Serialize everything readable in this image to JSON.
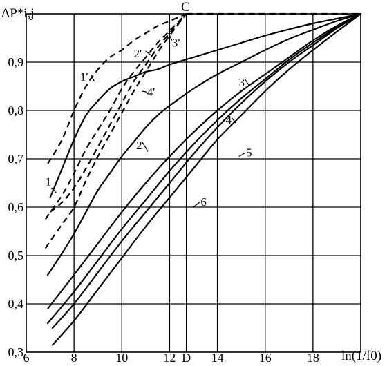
{
  "chart_data": {
    "type": "line",
    "title": "",
    "ylabel": "ΔP*i,j",
    "xlabel": "ln(1/f0)",
    "xlim": [
      6,
      20
    ],
    "ylim": [
      0.3,
      1.0
    ],
    "grid": true,
    "x_ticks": [
      {
        "value": 6,
        "label": "6"
      },
      {
        "value": 8,
        "label": "8"
      },
      {
        "value": 10,
        "label": "10"
      },
      {
        "value": 12,
        "label": "12"
      },
      {
        "value": 12.7,
        "label": "D"
      },
      {
        "value": 14,
        "label": "14"
      },
      {
        "value": 16,
        "label": "16"
      },
      {
        "value": 18,
        "label": "18"
      }
    ],
    "y_ticks": [
      {
        "value": 0.3,
        "label": "0,3"
      },
      {
        "value": 0.4,
        "label": "0,4"
      },
      {
        "value": 0.5,
        "label": "0,5"
      },
      {
        "value": 0.6,
        "label": "0,6"
      },
      {
        "value": 0.7,
        "label": "0,7"
      },
      {
        "value": 0.8,
        "label": "0,8"
      },
      {
        "value": 0.9,
        "label": "0,9"
      }
    ],
    "point_C": {
      "label": "C",
      "x": 12.7,
      "y": 1.0
    },
    "c_line": {
      "style": "dashed",
      "points": [
        [
          12.7,
          1.0
        ],
        [
          20,
          1.0
        ]
      ]
    },
    "series": [
      {
        "name": "1",
        "style": "solid",
        "label_at": [
          6.8,
          0.645
        ],
        "points": [
          [
            7.0,
            0.62
          ],
          [
            7.5,
            0.68
          ],
          [
            8,
            0.74
          ],
          [
            8.5,
            0.79
          ],
          [
            9,
            0.82
          ],
          [
            9.5,
            0.845
          ],
          [
            10,
            0.86
          ],
          [
            10.5,
            0.87
          ],
          [
            11,
            0.88
          ],
          [
            11.5,
            0.885
          ],
          [
            12,
            0.895
          ],
          [
            13,
            0.91
          ],
          [
            14,
            0.925
          ],
          [
            15,
            0.94
          ],
          [
            16,
            0.955
          ],
          [
            17,
            0.968
          ],
          [
            18,
            0.98
          ],
          [
            19,
            0.99
          ],
          [
            20,
            1.0
          ]
        ]
      },
      {
        "name": "2",
        "style": "solid",
        "label_at": [
          10.6,
          0.72
        ],
        "points": [
          [
            6.9,
            0.46
          ],
          [
            7.5,
            0.505
          ],
          [
            8,
            0.545
          ],
          [
            8.5,
            0.59
          ],
          [
            9,
            0.635
          ],
          [
            9.5,
            0.67
          ],
          [
            10,
            0.705
          ],
          [
            10.5,
            0.735
          ],
          [
            11,
            0.765
          ],
          [
            11.5,
            0.79
          ],
          [
            12,
            0.81
          ],
          [
            13,
            0.845
          ],
          [
            14,
            0.875
          ],
          [
            15,
            0.9
          ],
          [
            16,
            0.925
          ],
          [
            17,
            0.948
          ],
          [
            18,
            0.967
          ],
          [
            19,
            0.985
          ],
          [
            20,
            1.0
          ]
        ]
      },
      {
        "name": "3",
        "style": "solid",
        "label_at": [
          14.9,
          0.85
        ],
        "points": [
          [
            6.9,
            0.39
          ],
          [
            8,
            0.46
          ],
          [
            9,
            0.525
          ],
          [
            10,
            0.59
          ],
          [
            11,
            0.65
          ],
          [
            12,
            0.705
          ],
          [
            13,
            0.755
          ],
          [
            14,
            0.8
          ],
          [
            15,
            0.84
          ],
          [
            16,
            0.875
          ],
          [
            17,
            0.91
          ],
          [
            18,
            0.945
          ],
          [
            19,
            0.975
          ],
          [
            20,
            1.0
          ]
        ]
      },
      {
        "name": "4",
        "style": "solid",
        "label_at": [
          14.35,
          0.773
        ],
        "points": [
          [
            6.9,
            0.36
          ],
          [
            8,
            0.425
          ],
          [
            9,
            0.49
          ],
          [
            10,
            0.555
          ],
          [
            11,
            0.615
          ],
          [
            12,
            0.675
          ],
          [
            13,
            0.73
          ],
          [
            14,
            0.78
          ],
          [
            15,
            0.825
          ],
          [
            16,
            0.865
          ],
          [
            17,
            0.905
          ],
          [
            18,
            0.94
          ],
          [
            19,
            0.972
          ],
          [
            20,
            1.0
          ]
        ]
      },
      {
        "name": "5",
        "style": "solid",
        "label_at": [
          15.2,
          0.705
        ],
        "points": [
          [
            7.1,
            0.35
          ],
          [
            8,
            0.4
          ],
          [
            9,
            0.465
          ],
          [
            10,
            0.53
          ],
          [
            11,
            0.59
          ],
          [
            12,
            0.65
          ],
          [
            13,
            0.71
          ],
          [
            14,
            0.765
          ],
          [
            15,
            0.815
          ],
          [
            16,
            0.86
          ],
          [
            17,
            0.9
          ],
          [
            18,
            0.935
          ],
          [
            19,
            0.97
          ],
          [
            20,
            1.0
          ]
        ]
      },
      {
        "name": "6",
        "style": "solid",
        "label_at": [
          13.3,
          0.603
        ],
        "points": [
          [
            7.1,
            0.315
          ],
          [
            8,
            0.365
          ],
          [
            9,
            0.43
          ],
          [
            10,
            0.495
          ],
          [
            11,
            0.56
          ],
          [
            12,
            0.62
          ],
          [
            13,
            0.68
          ],
          [
            14,
            0.74
          ],
          [
            15,
            0.79
          ],
          [
            16,
            0.84
          ],
          [
            17,
            0.885
          ],
          [
            18,
            0.925
          ],
          [
            19,
            0.963
          ],
          [
            20,
            1.0
          ]
        ]
      },
      {
        "name": "1'",
        "style": "dashed",
        "label_at": [
          8.25,
          0.862
        ],
        "points": [
          [
            6.9,
            0.69
          ],
          [
            7.5,
            0.74
          ],
          [
            8,
            0.8
          ],
          [
            8.5,
            0.85
          ],
          [
            9,
            0.885
          ],
          [
            9.5,
            0.91
          ],
          [
            10,
            0.925
          ],
          [
            10.5,
            0.945
          ],
          [
            11,
            0.96
          ],
          [
            11.5,
            0.975
          ],
          [
            12,
            0.985
          ],
          [
            12.7,
            1.0
          ]
        ]
      },
      {
        "name": "2'",
        "style": "dashed",
        "label_at": [
          10.5,
          0.91
        ],
        "points": [
          [
            6.8,
            0.575
          ],
          [
            7.5,
            0.625
          ],
          [
            8,
            0.67
          ],
          [
            8.5,
            0.72
          ],
          [
            9,
            0.76
          ],
          [
            9.5,
            0.8
          ],
          [
            10,
            0.845
          ],
          [
            10.5,
            0.88
          ],
          [
            11,
            0.91
          ],
          [
            11.5,
            0.94
          ],
          [
            12,
            0.965
          ],
          [
            12.7,
            1.0
          ]
        ]
      },
      {
        "name": "3'",
        "style": "dashed",
        "label_at": [
          12.1,
          0.932
        ],
        "points": [
          [
            7.0,
            0.59
          ],
          [
            7.5,
            0.61
          ],
          [
            8,
            0.64
          ],
          [
            8.5,
            0.68
          ],
          [
            9,
            0.725
          ],
          [
            9.5,
            0.77
          ],
          [
            10,
            0.815
          ],
          [
            10.5,
            0.86
          ],
          [
            11,
            0.895
          ],
          [
            11.5,
            0.93
          ],
          [
            12,
            0.96
          ],
          [
            12.7,
            1.0
          ]
        ]
      },
      {
        "name": "4'",
        "style": "dashed",
        "label_at": [
          11.05,
          0.83
        ],
        "points": [
          [
            6.8,
            0.515
          ],
          [
            7.5,
            0.565
          ],
          [
            8,
            0.6
          ],
          [
            8.5,
            0.655
          ],
          [
            9,
            0.705
          ],
          [
            9.5,
            0.75
          ],
          [
            10,
            0.795
          ],
          [
            10.5,
            0.84
          ],
          [
            11,
            0.88
          ],
          [
            11.5,
            0.92
          ],
          [
            12,
            0.955
          ],
          [
            12.7,
            1.0
          ]
        ]
      }
    ]
  }
}
